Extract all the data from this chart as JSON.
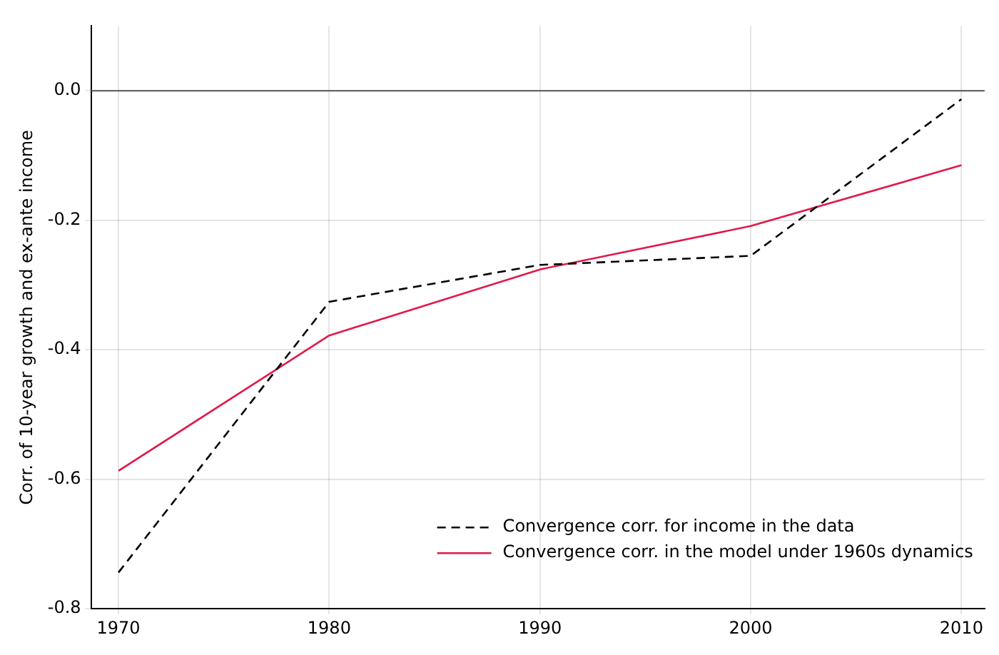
{
  "chart_data": {
    "type": "line",
    "ylabel": "Corr. of 10-year growth and ex-ante income",
    "x": [
      1970,
      1980,
      1990,
      2000,
      2010
    ],
    "series": [
      {
        "name": "Convergence corr. for income in the data",
        "color": "#000000",
        "line_style": "dashed",
        "values": [
          -0.744,
          -0.326,
          -0.269,
          -0.255,
          -0.013
        ]
      },
      {
        "name": "Convergence corr. in the model under 1960s dynamics",
        "color": "#e0194a",
        "line_style": "solid",
        "values": [
          -0.587,
          -0.378,
          -0.276,
          -0.209,
          -0.115
        ]
      }
    ],
    "xlim": [
      1968.7,
      2011.1
    ],
    "xticks": [
      1970,
      1980,
      1990,
      2000,
      2010
    ],
    "ylim": [
      -0.8,
      0.1
    ],
    "yticks": [
      {
        "value": 0,
        "label": "0.0"
      },
      -0.2,
      -0.4,
      -0.6,
      -0.8
    ],
    "ref_lines": [
      {
        "axis": "y",
        "value": 0,
        "color": "#555555"
      }
    ],
    "grid": true,
    "legend": "bottom right",
    "marker": "none"
  }
}
